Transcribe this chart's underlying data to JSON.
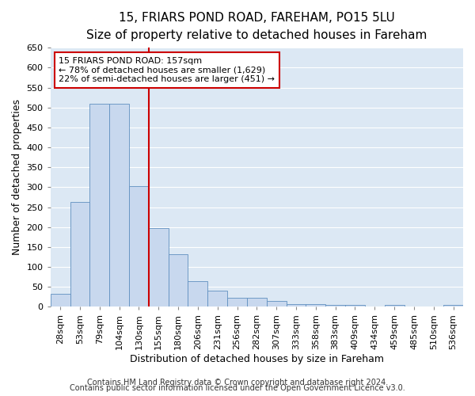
{
  "title_line1": "15, FRIARS POND ROAD, FAREHAM, PO15 5LU",
  "title_line2": "Size of property relative to detached houses in Fareham",
  "xlabel": "Distribution of detached houses by size in Fareham",
  "ylabel": "Number of detached properties",
  "categories": [
    "28sqm",
    "53sqm",
    "79sqm",
    "104sqm",
    "130sqm",
    "155sqm",
    "180sqm",
    "206sqm",
    "231sqm",
    "256sqm",
    "282sqm",
    "307sqm",
    "333sqm",
    "358sqm",
    "383sqm",
    "409sqm",
    "434sqm",
    "459sqm",
    "485sqm",
    "510sqm",
    "536sqm"
  ],
  "values": [
    32,
    262,
    510,
    510,
    303,
    197,
    131,
    65,
    40,
    22,
    22,
    15,
    7,
    7,
    5,
    5,
    0,
    5,
    0,
    0,
    5
  ],
  "bar_color": "#c8d8ee",
  "bar_edge_color": "#6090c0",
  "background_color": "#dce8f4",
  "grid_color": "#ffffff",
  "annotation_box_color": "#cc0000",
  "vline_color": "#cc0000",
  "vline_x_index": 5,
  "annotation_title": "15 FRIARS POND ROAD: 157sqm",
  "annotation_line1": "← 78% of detached houses are smaller (1,629)",
  "annotation_line2": "22% of semi-detached houses are larger (451) →",
  "footnote1": "Contains HM Land Registry data © Crown copyright and database right 2024.",
  "footnote2": "Contains public sector information licensed under the Open Government Licence v3.0.",
  "ylim": [
    0,
    650
  ],
  "yticks": [
    0,
    50,
    100,
    150,
    200,
    250,
    300,
    350,
    400,
    450,
    500,
    550,
    600,
    650
  ],
  "title_fontsize": 11,
  "subtitle_fontsize": 10,
  "axis_label_fontsize": 9,
  "tick_fontsize": 8,
  "annotation_fontsize": 8,
  "footnote_fontsize": 7
}
